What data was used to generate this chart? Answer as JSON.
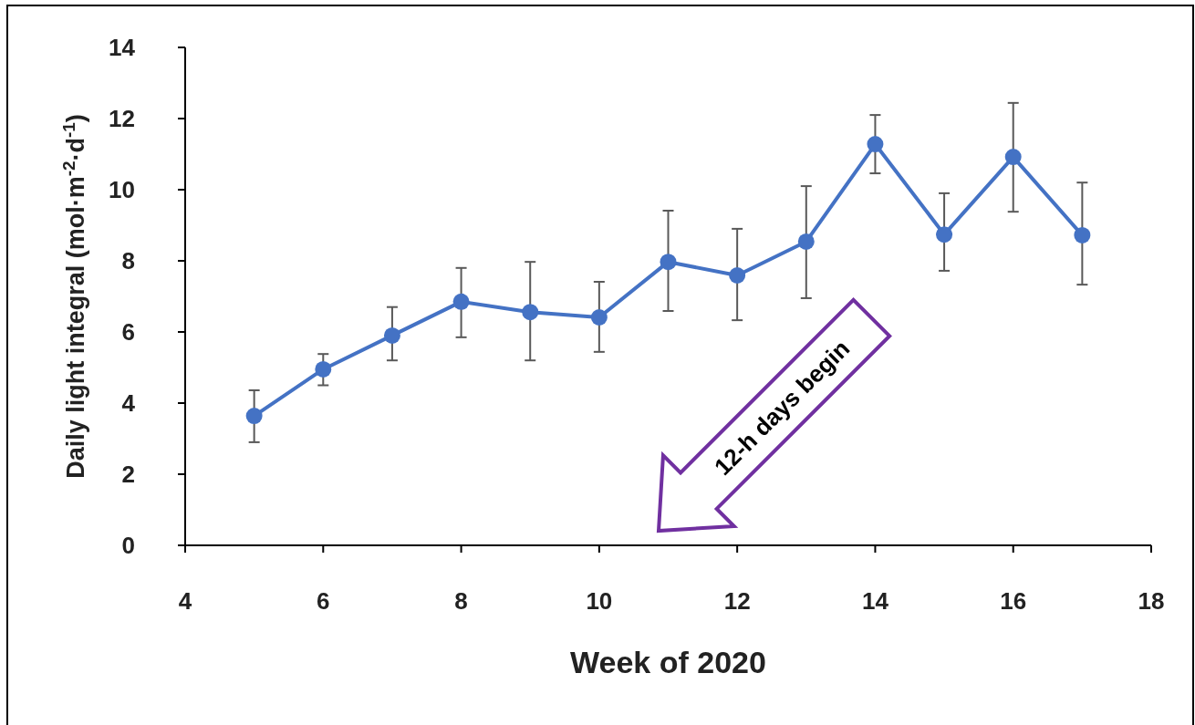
{
  "chart_data": {
    "type": "line",
    "xlabel": "Week of 2020",
    "ylabel": "Daily light integral (mol·m$^{-2}$·d$^{-1}$)",
    "x": [
      5,
      6,
      7,
      8,
      9,
      10,
      11,
      12,
      13,
      14,
      15,
      16,
      17
    ],
    "series": [
      {
        "color": "#4472c4",
        "values": [
          3.64,
          4.95,
          5.9,
          6.85,
          6.56,
          6.41,
          7.97,
          7.59,
          8.54,
          11.28,
          8.74,
          10.92,
          8.72
        ],
        "errors": [
          [
            2.9,
            4.36
          ],
          [
            4.5,
            5.38
          ],
          [
            5.2,
            6.7
          ],
          [
            5.85,
            7.8
          ],
          [
            5.2,
            7.97
          ],
          [
            5.44,
            7.41
          ],
          [
            6.59,
            9.41
          ],
          [
            6.33,
            8.9
          ],
          [
            6.95,
            10.1
          ],
          [
            10.46,
            12.1
          ],
          [
            7.72,
            9.9
          ],
          [
            9.38,
            12.44
          ],
          [
            7.33,
            10.2
          ]
        ]
      }
    ],
    "xlim": [
      4,
      18
    ],
    "xticks": [
      4,
      6,
      8,
      10,
      12,
      14,
      16,
      18
    ],
    "ylim": [
      0,
      14
    ],
    "yticks": [
      0,
      2,
      4,
      6,
      8,
      10,
      12,
      14
    ],
    "marker": "circle",
    "line_style": "solid",
    "grid": false,
    "annotations": [
      "12-h days begin"
    ]
  }
}
